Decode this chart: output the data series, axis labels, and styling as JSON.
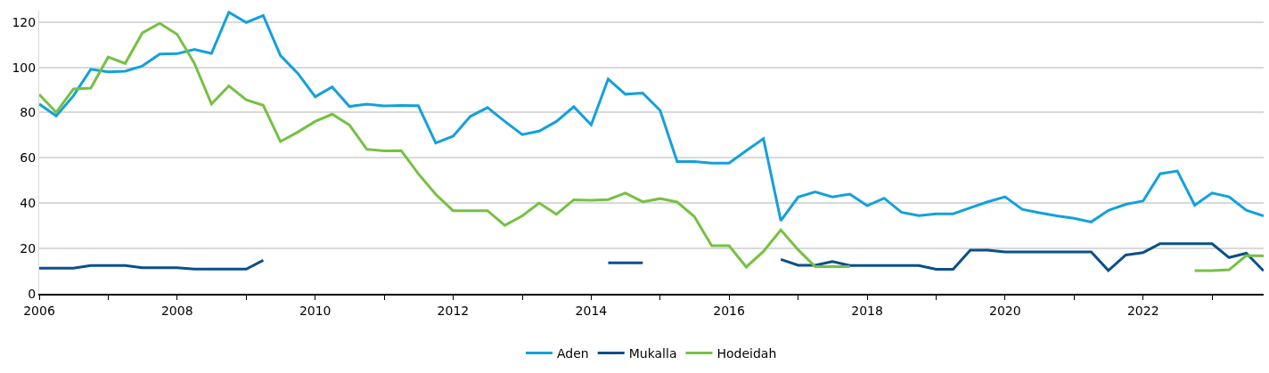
{
  "chart_data": {
    "type": "line",
    "x": [
      "2006-01",
      "2006-04",
      "2006-07",
      "2006-10",
      "2007-01",
      "2007-04",
      "2007-07",
      "2007-10",
      "2008-01",
      "2008-04",
      "2008-07",
      "2008-10",
      "2009-01",
      "2009-04",
      "2009-07",
      "2009-10",
      "2010-01",
      "2010-04",
      "2010-07",
      "2010-10",
      "2011-01",
      "2011-04",
      "2011-07",
      "2011-10",
      "2012-01",
      "2012-04",
      "2012-07",
      "2012-10",
      "2013-01",
      "2013-04",
      "2013-07",
      "2013-10",
      "2014-01",
      "2014-04",
      "2014-07",
      "2014-10",
      "2015-01",
      "2015-04",
      "2015-07",
      "2015-10",
      "2016-01",
      "2016-04",
      "2016-07",
      "2016-10",
      "2017-01",
      "2017-04",
      "2017-07",
      "2017-10",
      "2018-01",
      "2018-04",
      "2018-07",
      "2018-10",
      "2019-01",
      "2019-04",
      "2019-07",
      "2019-10",
      "2020-01",
      "2020-04",
      "2020-07",
      "2020-10",
      "2021-01",
      "2021-04",
      "2021-07",
      "2021-10",
      "2022-01",
      "2022-04",
      "2022-07",
      "2022-10",
      "2023-01",
      "2023-04",
      "2023-07",
      "2023-10"
    ],
    "series": [
      {
        "name": "Aden",
        "color": "#14a0dc",
        "values": [
          83.8,
          78.5,
          87.4,
          99.1,
          98,
          98.3,
          100.6,
          105.8,
          106,
          107.9,
          106.1,
          124.3,
          119.8,
          122.9,
          105.2,
          97.3,
          87,
          91.3,
          82.7,
          83.7,
          82.9,
          83.1,
          83,
          66.6,
          69.6,
          78.3,
          82.2,
          76.1,
          70.3,
          71.8,
          76.1,
          82.6,
          74.6,
          94.8,
          88.1,
          88.6,
          81,
          58.4,
          58.4,
          57.7,
          57.7,
          63.2,
          68.5,
          32.3,
          42.7,
          45,
          42.8,
          44,
          38.9,
          42.2,
          36,
          34.5,
          35.3,
          35.3,
          38,
          40.6,
          42.8,
          37.3,
          35.8,
          34.4,
          33.3,
          31.7,
          36.8,
          39.5,
          41,
          53,
          54.2,
          39.1,
          44.5,
          42.8,
          36.9,
          34.4
        ]
      },
      {
        "name": "Mukalla",
        "color": "#0a4f8c",
        "values": [
          11.3,
          11.3,
          11.3,
          12.5,
          12.5,
          12.5,
          11.5,
          11.5,
          11.5,
          10.9,
          10.9,
          10.9,
          10.9,
          14.8,
          null,
          null,
          null,
          null,
          null,
          null,
          null,
          null,
          null,
          null,
          null,
          null,
          null,
          null,
          null,
          null,
          null,
          null,
          null,
          13.7,
          13.7,
          13.7,
          null,
          null,
          null,
          null,
          null,
          null,
          null,
          15.2,
          12.6,
          12.6,
          14.2,
          12.5,
          12.5,
          12.5,
          12.5,
          12.5,
          10.8,
          10.8,
          19.3,
          19.3,
          18.5,
          18.5,
          18.5,
          18.5,
          18.5,
          18.5,
          10.3,
          17.1,
          18.2,
          22.1,
          22.1,
          22.1,
          22.1,
          16,
          17.9,
          10.1
        ]
      },
      {
        "name": "Hodeidah",
        "color": "#76c043",
        "values": [
          88,
          80.1,
          90.4,
          90.8,
          104.5,
          101.7,
          115.2,
          119.4,
          114.6,
          101.8,
          83.8,
          91.8,
          85.6,
          83.2,
          67.2,
          71.4,
          76.1,
          79.3,
          74.5,
          63.8,
          63.1,
          63.2,
          53,
          43.9,
          36.7,
          36.7,
          36.7,
          30.2,
          34.4,
          40.1,
          35.1,
          41.5,
          41.3,
          41.6,
          44.5,
          40.6,
          42,
          40.5,
          34.1,
          21.2,
          21.2,
          11.8,
          18.7,
          28.2,
          19.4,
          12,
          12,
          12,
          null,
          null,
          null,
          null,
          null,
          null,
          null,
          null,
          null,
          null,
          null,
          null,
          null,
          null,
          null,
          null,
          null,
          null,
          null,
          10.2,
          10.2,
          10.6,
          16.9,
          16.7
        ]
      }
    ],
    "xlim": [
      "2006-01",
      "2023-10"
    ],
    "xticks": [
      {
        "value": "2006",
        "label": "2006"
      },
      {
        "value": "2007",
        "label": null
      },
      {
        "value": "2008",
        "label": "2008"
      },
      {
        "value": "2009",
        "label": null
      },
      {
        "value": "2010",
        "label": "2010"
      },
      {
        "value": "2011",
        "label": null
      },
      {
        "value": "2012",
        "label": "2012"
      },
      {
        "value": "2013",
        "label": null
      },
      {
        "value": "2014",
        "label": "2014"
      },
      {
        "value": "2015",
        "label": null
      },
      {
        "value": "2016",
        "label": "2016"
      },
      {
        "value": "2017",
        "label": null
      },
      {
        "value": "2018",
        "label": "2018"
      },
      {
        "value": "2019",
        "label": null
      },
      {
        "value": "2020",
        "label": "2020"
      },
      {
        "value": "2021",
        "label": null
      },
      {
        "value": "2022",
        "label": "2022"
      },
      {
        "value": "2023",
        "label": null
      }
    ],
    "ylim": [
      0,
      125
    ],
    "yticks": [
      0,
      20,
      40,
      60,
      80,
      100,
      120
    ],
    "grid": "y",
    "legend": "bottom",
    "marker": "none",
    "line_style": "solid"
  }
}
